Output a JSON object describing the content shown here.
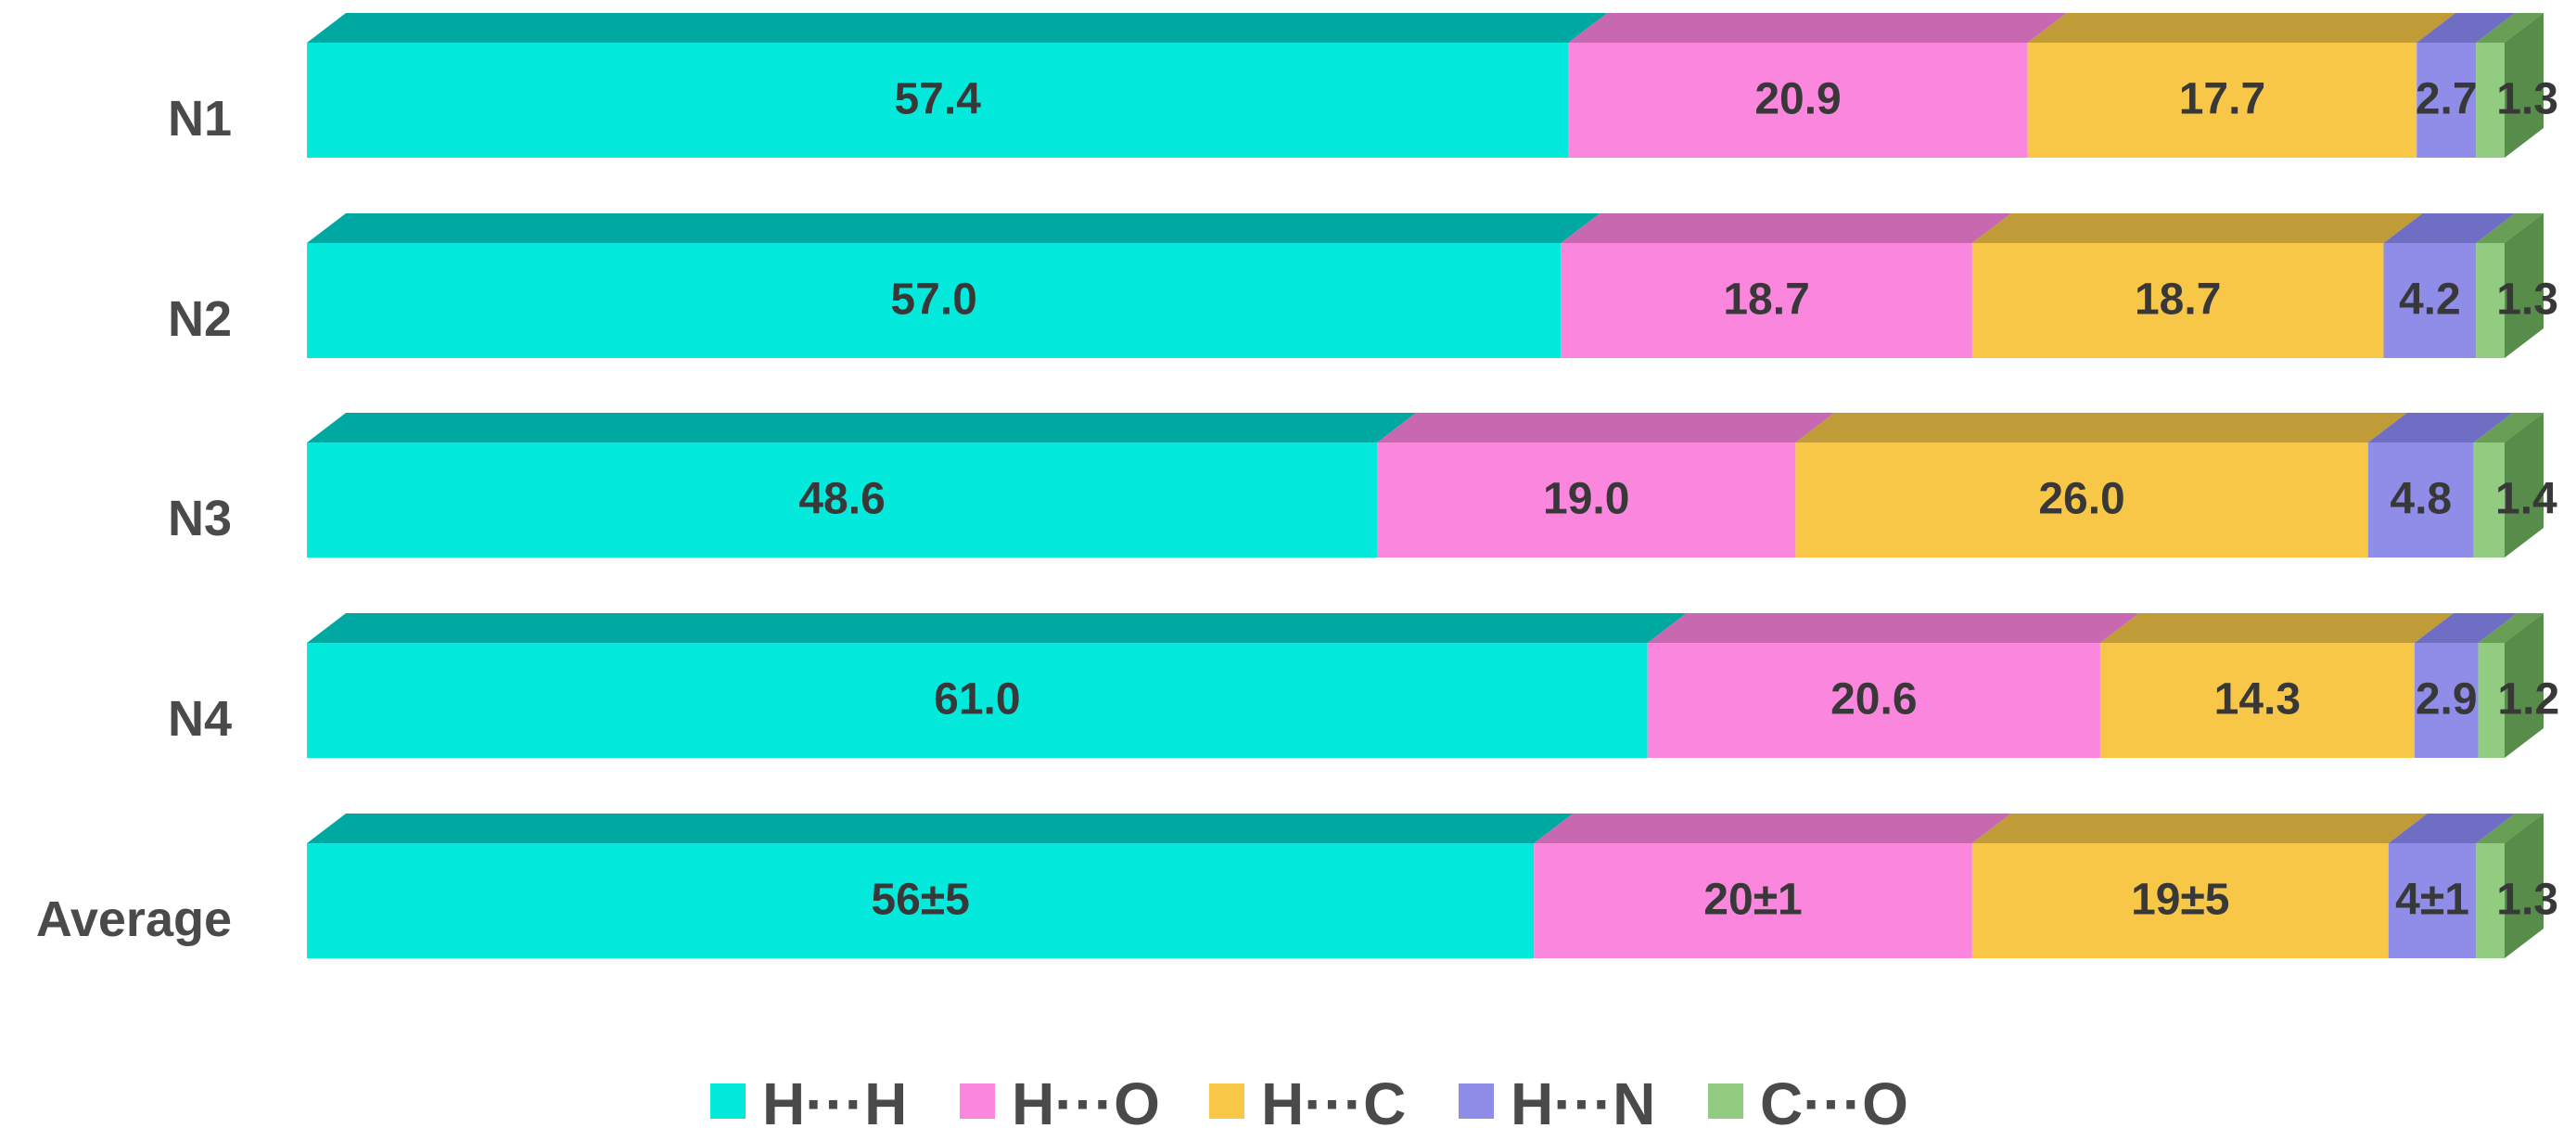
{
  "chart_data": {
    "type": "bar",
    "variant": "horizontal-stacked-3d",
    "title": "",
    "xlabel": "",
    "ylabel": "",
    "xlim": [
      0,
      100
    ],
    "grid": false,
    "background_color": "#FFFFFF",
    "value_label_color": "#383838",
    "category_label_color": "#4A4A4A",
    "side_cap_color": "#578C4B",
    "categories": [
      "N1",
      "N2",
      "N3",
      "N4",
      "Average"
    ],
    "series": [
      {
        "name": "H···H",
        "color": "#03EADC",
        "top_color": "#00A8A2",
        "values": [
          57.4,
          57.0,
          48.6,
          61.0,
          56
        ],
        "display": [
          "57.4",
          "57.0",
          "48.6",
          "61.0",
          "56±5"
        ]
      },
      {
        "name": "H···O",
        "color": "#FB86DE",
        "top_color": "#C768B0",
        "values": [
          20.9,
          18.7,
          19.0,
          20.6,
          20
        ],
        "display": [
          "20.9",
          "18.7",
          "19.0",
          "20.6",
          "20±1"
        ]
      },
      {
        "name": "H···C",
        "color": "#F8C747",
        "top_color": "#BF9C37",
        "values": [
          17.7,
          18.7,
          26.0,
          14.3,
          19
        ],
        "display": [
          "17.7",
          "18.7",
          "26.0",
          "14.3",
          "19±5"
        ]
      },
      {
        "name": "H···N",
        "color": "#8F8DE8",
        "top_color": "#6F6DC4",
        "values": [
          2.7,
          4.2,
          4.8,
          2.9,
          4
        ],
        "display": [
          "2.7",
          "4.2",
          "4.8",
          "2.9",
          "4±1"
        ]
      },
      {
        "name": "C···O",
        "color": "#92CC80",
        "top_color": "#689E56",
        "values": [
          1.3,
          1.3,
          1.4,
          1.2,
          1.3
        ],
        "display": [
          "1.3",
          "1.3",
          "1.4",
          "1.2",
          "1.3"
        ]
      }
    ],
    "legend": {
      "position": "bottom",
      "entries": [
        "H···H",
        "H···O",
        "H···C",
        "H···N",
        "C···O"
      ]
    }
  }
}
